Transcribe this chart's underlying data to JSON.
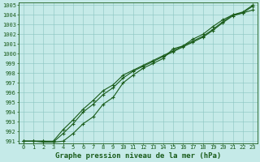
{
  "title": "Graphe pression niveau de la mer (hPa)",
  "background_color": "#c5eae8",
  "grid_color": "#88c4c0",
  "line_color": "#1a5c1a",
  "text_color": "#1a5c1a",
  "xlim_min": -0.5,
  "xlim_max": 23.5,
  "ylim_min": 990.8,
  "ylim_max": 1005.3,
  "xticks": [
    0,
    1,
    2,
    3,
    4,
    5,
    6,
    7,
    8,
    9,
    10,
    11,
    12,
    13,
    14,
    15,
    16,
    17,
    18,
    19,
    20,
    21,
    22,
    23
  ],
  "yticks": [
    991,
    992,
    993,
    994,
    995,
    996,
    997,
    998,
    999,
    1000,
    1001,
    1002,
    1003,
    1004,
    1005
  ],
  "series1_x": [
    0,
    1,
    2,
    3,
    4,
    5,
    6,
    7,
    8,
    9,
    10,
    11,
    12,
    13,
    14,
    15,
    16,
    17,
    18,
    19,
    20,
    21,
    22,
    23
  ],
  "series1_y": [
    991,
    991,
    991,
    990.9,
    991.0,
    991.8,
    992.8,
    993.5,
    994.8,
    995.5,
    997.0,
    997.8,
    998.5,
    999.0,
    999.5,
    1000.5,
    1000.8,
    1001.5,
    1002.0,
    1002.8,
    1003.5,
    1004.0,
    1004.2,
    1004.5
  ],
  "series2_x": [
    0,
    1,
    2,
    3,
    4,
    5,
    6,
    7,
    8,
    9,
    10,
    11,
    12,
    13,
    14,
    15,
    16,
    17,
    18,
    19,
    20,
    21,
    22,
    23
  ],
  "series2_y": [
    991,
    991,
    990.9,
    990.9,
    991.8,
    992.8,
    994.0,
    994.8,
    995.8,
    996.5,
    997.5,
    998.2,
    998.7,
    999.2,
    999.7,
    1000.2,
    1000.7,
    1001.2,
    1001.7,
    1002.4,
    1003.2,
    1003.9,
    1004.2,
    1004.9
  ],
  "series3_x": [
    0,
    1,
    2,
    3,
    4,
    5,
    6,
    7,
    8,
    9,
    10,
    11,
    12,
    13,
    14,
    15,
    16,
    17,
    18,
    19,
    20,
    21,
    22,
    23
  ],
  "series3_y": [
    991,
    991,
    991,
    991.0,
    992.2,
    993.2,
    994.3,
    995.2,
    996.2,
    996.8,
    997.8,
    998.3,
    998.8,
    999.3,
    999.8,
    1000.3,
    1000.8,
    1001.3,
    1001.8,
    1002.5,
    1003.3,
    1004.0,
    1004.3,
    1005.0
  ],
  "xlabel_fontsize": 6.5,
  "tick_fontsize": 5.0,
  "marker": "+",
  "markersize": 3.5,
  "linewidth": 0.8
}
